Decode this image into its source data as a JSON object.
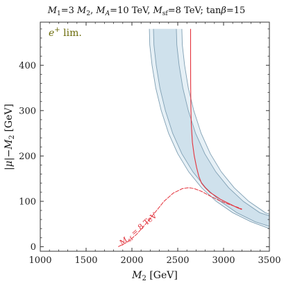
{
  "chart_data": {
    "type": "line",
    "title": "M₁=3 M₂, Mₐ=10 TeV, Mₛf=8 TeV; tanβ=15",
    "title_parts": {
      "a": "M",
      "a_sub": "1",
      "b": "=3 ",
      "c": "M",
      "c_sub": "2",
      "d": ", ",
      "e": "M",
      "e_sub": "A",
      "f": "=10 TeV, ",
      "g": "M",
      "g_sub": "sf",
      "h": "=8 TeV; tan",
      "i": "β",
      "j": "=15"
    },
    "xlabel": "M₂ [GeV]",
    "xlabel_parts": {
      "sym": "M",
      "sub": "2",
      "unit": " [GeV]"
    },
    "ylabel": "|μ|−M₂ [GeV]",
    "ylabel_parts": {
      "pre": "|",
      "mu": "μ",
      "mid": "|−",
      "sym": "M",
      "sub": "2",
      "unit": " [GeV]"
    },
    "xlim": [
      1000,
      3500
    ],
    "ylim": [
      -10,
      495
    ],
    "xticks": [
      1000,
      1500,
      2000,
      2500,
      3000,
      3500
    ],
    "yticks": [
      0,
      100,
      200,
      300,
      400
    ],
    "grid": false,
    "annotation": "e⁺ lim.",
    "annotation_parts": {
      "sym": "e",
      "sup": "+",
      "rest": " lim."
    },
    "curve_label": "Mₛf = 8 TeV",
    "curve_label_parts": {
      "sym": "M",
      "sub": "sf",
      "rest": " = 8 TeV"
    },
    "colors": {
      "outer_band": "#e6f0f6",
      "inner_band": "#cfe1ec",
      "band_edge": "#7f9fb3",
      "red": "#e4323c"
    },
    "series": [
      {
        "role": "outer-band-left",
        "x": [
          2190,
          2195,
          2220,
          2260,
          2320,
          2400,
          2500,
          2620,
          2760,
          2920,
          3100,
          3300,
          3500
        ],
        "y": [
          480,
          445,
          400,
          350,
          300,
          250,
          205,
          165,
          130,
          100,
          75,
          55,
          40
        ]
      },
      {
        "role": "inner-band-left",
        "x": [
          2235,
          2240,
          2265,
          2305,
          2365,
          2445,
          2545,
          2665,
          2805,
          2965,
          3145,
          3345,
          3500
        ],
        "y": [
          480,
          445,
          400,
          350,
          300,
          250,
          205,
          165,
          130,
          100,
          75,
          55,
          45
        ]
      },
      {
        "role": "inner-band-right",
        "x": [
          2485,
          2490,
          2515,
          2555,
          2615,
          2695,
          2795,
          2915,
          3055,
          3215,
          3395,
          3500
        ],
        "y": [
          480,
          445,
          400,
          350,
          300,
          250,
          205,
          165,
          130,
          100,
          75,
          68
        ]
      },
      {
        "role": "outer-band-right",
        "x": [
          2545,
          2550,
          2575,
          2615,
          2675,
          2755,
          2855,
          2975,
          3115,
          3275,
          3455,
          3500
        ],
        "y": [
          480,
          445,
          400,
          350,
          300,
          250,
          205,
          165,
          130,
          100,
          75,
          72
        ]
      },
      {
        "role": "red-limit-curve",
        "x": [
          2640,
          2640,
          2641,
          2643,
          2648,
          2660,
          2680,
          2705,
          2730,
          2760,
          2800,
          2850,
          2910,
          2970,
          3030,
          3090,
          3150,
          3200
        ],
        "y": [
          480,
          420,
          360,
          310,
          270,
          230,
          200,
          175,
          155,
          140,
          130,
          120,
          112,
          104,
          98,
          92,
          86,
          82
        ]
      },
      {
        "role": "red-msf-curve",
        "x": [
          1850,
          1950,
          2050,
          2150,
          2250,
          2350,
          2450,
          2550,
          2620,
          2680,
          2760,
          2850,
          2950,
          3050,
          3150,
          3200
        ],
        "y": [
          0,
          10,
          27,
          50,
          75,
          100,
          118,
          128,
          130,
          128,
          122,
          112,
          102,
          94,
          87,
          83
        ]
      }
    ]
  }
}
